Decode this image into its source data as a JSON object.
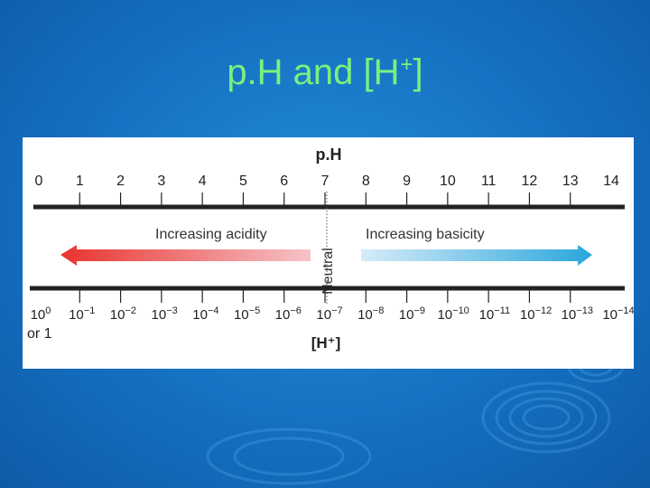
{
  "slide": {
    "title_main": "p.H and [H",
    "title_sup": "+",
    "title_end": "]"
  },
  "diagram": {
    "ph_label": "p.H",
    "ph_ticks": [
      "0",
      "1",
      "2",
      "3",
      "4",
      "5",
      "6",
      "7",
      "8",
      "9",
      "10",
      "11",
      "12",
      "13",
      "14"
    ],
    "neutral_label": "Neutral",
    "acidity_label": "Increasing acidity",
    "basicity_label": "Increasing basicity",
    "h_base": "10",
    "h_exponents": [
      "0",
      "−1",
      "−2",
      "−3",
      "−4",
      "−5",
      "−6",
      "−7",
      "−8",
      "−9",
      "−10",
      "−11",
      "−12",
      "−13",
      "−14"
    ],
    "h_first_extra": "or 1",
    "h_label": "[H⁺]",
    "colors": {
      "acid": "#e8332e",
      "acid_light": "#f4b3b8",
      "base": "#29a6dc",
      "base_light": "#cfe8f6",
      "axis": "#222222"
    }
  }
}
